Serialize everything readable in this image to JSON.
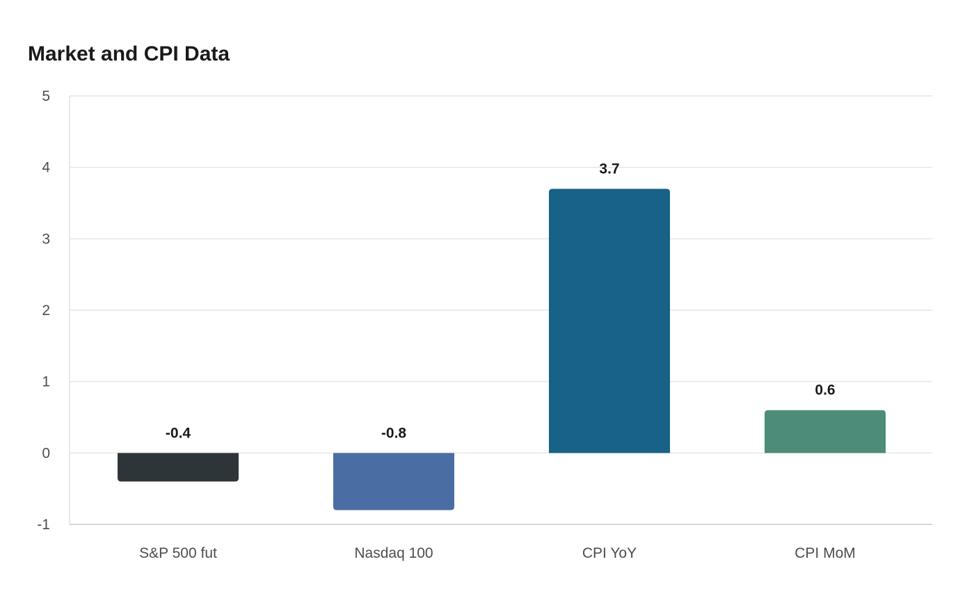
{
  "chart_data": {
    "type": "bar",
    "title": "Market and CPI Data",
    "categories": [
      "S&P 500 fut",
      "Nasdaq 100",
      "CPI YoY",
      "CPI MoM"
    ],
    "values": [
      -0.4,
      -0.8,
      3.7,
      0.6
    ],
    "data_labels": [
      "-0.4",
      "-0.8",
      "3.7",
      "0.6"
    ],
    "colors": [
      "#2e3538",
      "#4a6ea4",
      "#186187",
      "#4e8c7a"
    ],
    "xlabel": "",
    "ylabel": "",
    "ylim": [
      -1,
      5
    ],
    "yticks": [
      -1,
      0,
      1,
      2,
      3,
      4,
      5
    ],
    "grid": true,
    "legend": "none"
  }
}
